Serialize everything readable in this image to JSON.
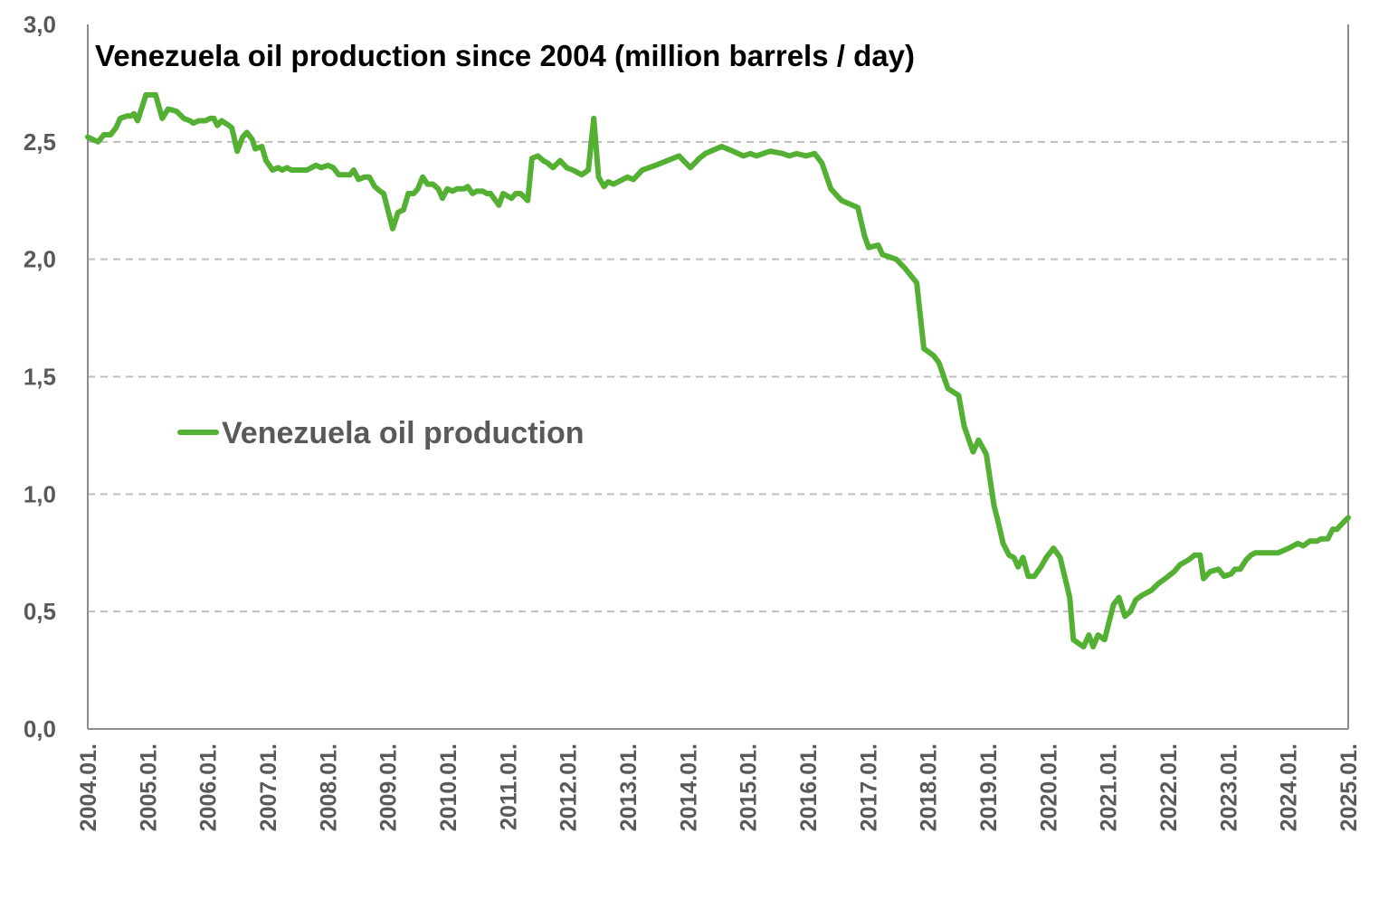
{
  "chart_data": {
    "type": "line",
    "title": "Venezuela oil production since 2004 (million barrels / day)",
    "xlabel": "",
    "ylabel": "",
    "xlim": [
      2004.0,
      2025.0
    ],
    "ylim": [
      0,
      3.0
    ],
    "grid": "horizontal dashed",
    "legend": "center-left",
    "yticks": [
      "0,0",
      "0,5",
      "1,0",
      "1,5",
      "2,0",
      "2,5",
      "3,0"
    ],
    "ytick_values": [
      0,
      0.5,
      1.0,
      1.5,
      2.0,
      2.5,
      3.0
    ],
    "xticks": [
      "2004.01.",
      "2005.01.",
      "2006.01.",
      "2007.01.",
      "2008.01.",
      "2009.01.",
      "2010.01.",
      "2011.01.",
      "2012.01.",
      "2013.01.",
      "2014.01.",
      "2015.01.",
      "2016.01.",
      "2017.01.",
      "2018.01.",
      "2019.01.",
      "2020.01.",
      "2021.01.",
      "2022.01.",
      "2023.01.",
      "2024.01.",
      "2025.01."
    ],
    "series": [
      {
        "name": "Venezuela oil production",
        "color": "#54b033",
        "x": [
          2004.0,
          2004.17,
          2004.27,
          2004.38,
          2004.47,
          2004.54,
          2004.65,
          2004.72,
          2004.77,
          2004.83,
          2004.97,
          2005.13,
          2005.24,
          2005.34,
          2005.48,
          2005.6,
          2005.7,
          2005.76,
          2005.85,
          2005.96,
          2006.04,
          2006.1,
          2006.16,
          2006.23,
          2006.35,
          2006.4,
          2006.49,
          2006.58,
          2006.65,
          2006.74,
          2006.79,
          2006.9,
          2006.97,
          2007.08,
          2007.17,
          2007.24,
          2007.32,
          2007.39,
          2007.65,
          2007.8,
          2007.89,
          2008.0,
          2008.09,
          2008.18,
          2008.37,
          2008.43,
          2008.51,
          2008.61,
          2008.69,
          2008.78,
          2008.87,
          2008.93,
          2009.08,
          2009.17,
          2009.26,
          2009.34,
          2009.43,
          2009.5,
          2009.58,
          2009.66,
          2009.75,
          2009.84,
          2009.91,
          2009.99,
          2010.08,
          2010.15,
          2010.27,
          2010.33,
          2010.41,
          2010.48,
          2010.58,
          2010.65,
          2010.71,
          2010.85,
          2010.92,
          2011.06,
          2011.13,
          2011.21,
          2011.33,
          2011.4,
          2011.5,
          2011.59,
          2011.66,
          2011.75,
          2011.87,
          2011.98,
          2012.08,
          2012.23,
          2012.34,
          2012.43,
          2012.51,
          2012.6,
          2012.67,
          2012.76,
          2012.99,
          2013.09,
          2013.24,
          2013.46,
          2013.85,
          2014.04,
          2014.19,
          2014.29,
          2014.56,
          2014.75,
          2014.92,
          2015.04,
          2015.14,
          2015.37,
          2015.58,
          2015.69,
          2015.81,
          2015.97,
          2016.11,
          2016.23,
          2016.38,
          2016.56,
          2016.83,
          2016.94,
          2017.01,
          2017.17,
          2017.24,
          2017.47,
          2017.62,
          2017.81,
          2017.93,
          2018.09,
          2018.18,
          2018.33,
          2018.51,
          2018.6,
          2018.75,
          2018.84,
          2018.97,
          2019.1,
          2019.16,
          2019.25,
          2019.35,
          2019.43,
          2019.5,
          2019.58,
          2019.67,
          2019.77,
          2019.88,
          2019.97,
          2020.09,
          2020.2,
          2020.36,
          2020.42,
          2020.59,
          2020.68,
          2020.75,
          2020.83,
          2020.94,
          2021.09,
          2021.18,
          2021.28,
          2021.37,
          2021.46,
          2021.57,
          2021.72,
          2021.84,
          2021.95,
          2022.1,
          2022.2,
          2022.34,
          2022.44,
          2022.53,
          2022.59,
          2022.7,
          2022.84,
          2022.93,
          2023.05,
          2023.11,
          2023.2,
          2023.3,
          2023.38,
          2023.45,
          2023.62,
          2023.83,
          2024.01,
          2024.16,
          2024.25,
          2024.36,
          2024.48,
          2024.55,
          2024.66,
          2024.74,
          2024.81,
          2024.92,
          2025.0
        ],
        "y": [
          2.52,
          2.5,
          2.53,
          2.53,
          2.56,
          2.6,
          2.61,
          2.61,
          2.62,
          2.59,
          2.7,
          2.7,
          2.6,
          2.64,
          2.63,
          2.6,
          2.59,
          2.58,
          2.59,
          2.59,
          2.6,
          2.6,
          2.57,
          2.59,
          2.57,
          2.56,
          2.46,
          2.52,
          2.54,
          2.51,
          2.47,
          2.48,
          2.42,
          2.38,
          2.39,
          2.38,
          2.39,
          2.38,
          2.38,
          2.4,
          2.39,
          2.4,
          2.39,
          2.36,
          2.36,
          2.38,
          2.34,
          2.35,
          2.35,
          2.31,
          2.29,
          2.28,
          2.13,
          2.2,
          2.21,
          2.28,
          2.28,
          2.3,
          2.35,
          2.32,
          2.32,
          2.3,
          2.26,
          2.3,
          2.29,
          2.3,
          2.3,
          2.31,
          2.28,
          2.29,
          2.29,
          2.28,
          2.28,
          2.23,
          2.28,
          2.26,
          2.28,
          2.28,
          2.25,
          2.43,
          2.44,
          2.42,
          2.41,
          2.39,
          2.42,
          2.39,
          2.38,
          2.36,
          2.38,
          2.6,
          2.35,
          2.31,
          2.33,
          2.32,
          2.35,
          2.34,
          2.38,
          2.4,
          2.44,
          2.39,
          2.43,
          2.45,
          2.48,
          2.46,
          2.44,
          2.45,
          2.44,
          2.46,
          2.45,
          2.44,
          2.45,
          2.44,
          2.45,
          2.41,
          2.3,
          2.25,
          2.22,
          2.1,
          2.05,
          2.06,
          2.02,
          2.0,
          1.96,
          1.9,
          1.62,
          1.59,
          1.56,
          1.45,
          1.42,
          1.29,
          1.18,
          1.23,
          1.17,
          0.95,
          0.89,
          0.79,
          0.74,
          0.73,
          0.69,
          0.73,
          0.65,
          0.65,
          0.69,
          0.73,
          0.77,
          0.73,
          0.56,
          0.38,
          0.35,
          0.4,
          0.35,
          0.4,
          0.38,
          0.53,
          0.56,
          0.48,
          0.5,
          0.55,
          0.57,
          0.59,
          0.62,
          0.64,
          0.67,
          0.7,
          0.72,
          0.74,
          0.74,
          0.64,
          0.67,
          0.68,
          0.65,
          0.66,
          0.68,
          0.68,
          0.72,
          0.74,
          0.75,
          0.75,
          0.75,
          0.77,
          0.79,
          0.78,
          0.8,
          0.8,
          0.81,
          0.81,
          0.85,
          0.85,
          0.88,
          0.9
        ]
      }
    ]
  }
}
